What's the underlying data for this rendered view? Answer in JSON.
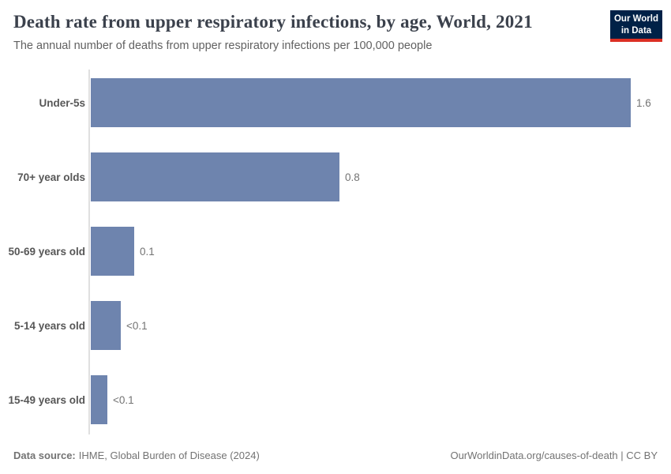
{
  "header": {
    "title": "Death rate from upper respiratory infections, by age, World, 2021",
    "subtitle": "The annual number of deaths from upper respiratory infections per 100,000 people"
  },
  "logo": {
    "line1": "Our World",
    "line2": "in Data",
    "bg_color": "#002147",
    "accent_color": "#dc2f24",
    "text_color": "#ffffff"
  },
  "chart_data": {
    "type": "bar",
    "orientation": "horizontal",
    "title": "Death rate from upper respiratory infections, by age, World, 2021",
    "categories": [
      "Under-5s",
      "70+ year olds",
      "50-69 years old",
      "5-14 years old",
      "15-49 years old"
    ],
    "values": [
      1.63,
      0.75,
      0.13,
      0.09,
      0.05
    ],
    "value_labels": [
      "1.6",
      "0.8",
      "0.1",
      "<0.1",
      "<0.1"
    ],
    "xlim": [
      0,
      1.63
    ],
    "grid": false,
    "legend": "none",
    "bar_color": "#6e84ae",
    "axis_line_color": "#e0e0e0"
  },
  "footer": {
    "datasource_label": "Data source:",
    "datasource_value": "IHME, Global Burden of Disease (2024)",
    "attribution": "OurWorldinData.org/causes-of-death | CC BY"
  }
}
